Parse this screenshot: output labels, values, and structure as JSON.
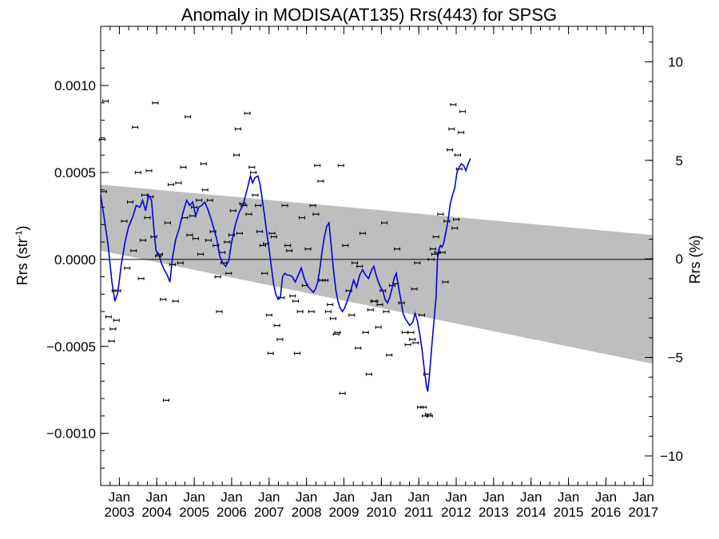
{
  "chart_data": {
    "type": "scatter",
    "title": "Anomaly in MODISA(AT135) Rrs(443) for SPSG",
    "ylabel": "Rrs (str",
    "ylabel_sup": "-1",
    "ylabel_close": ")",
    "y2label": "Rrs (%)",
    "xlim": [
      2002.5,
      2017.25
    ],
    "ylim": [
      -0.0013,
      0.00134
    ],
    "y2lim": [
      -11.5,
      11.8
    ],
    "y_ticks": [
      {
        "value": 0.001,
        "label": "0.0010"
      },
      {
        "value": 0.0005,
        "label": "0.0005"
      },
      {
        "value": 0.0,
        "label": "0.0000"
      },
      {
        "value": -0.0005,
        "label": "−0.0005"
      },
      {
        "value": -0.001,
        "label": "−0.0010"
      }
    ],
    "y2_ticks": [
      {
        "value": 10,
        "label": "10"
      },
      {
        "value": 5,
        "label": "5"
      },
      {
        "value": 0,
        "label": "0"
      },
      {
        "value": -5,
        "label": "−5"
      },
      {
        "value": -10,
        "label": "−10"
      }
    ],
    "x_ticks": [
      {
        "value": 2003.0,
        "month": "Jan",
        "year": "2003"
      },
      {
        "value": 2004.0,
        "month": "Jan",
        "year": "2004"
      },
      {
        "value": 2005.0,
        "month": "Jan",
        "year": "2005"
      },
      {
        "value": 2006.0,
        "month": "Jan",
        "year": "2006"
      },
      {
        "value": 2007.0,
        "month": "Jan",
        "year": "2007"
      },
      {
        "value": 2008.0,
        "month": "Jan",
        "year": "2008"
      },
      {
        "value": 2009.0,
        "month": "Jan",
        "year": "2009"
      },
      {
        "value": 2010.0,
        "month": "Jan",
        "year": "2010"
      },
      {
        "value": 2011.0,
        "month": "Jan",
        "year": "2011"
      },
      {
        "value": 2012.0,
        "month": "Jan",
        "year": "2012"
      },
      {
        "value": 2013.0,
        "month": "Jan",
        "year": "2013"
      },
      {
        "value": 2014.0,
        "month": "Jan",
        "year": "2014"
      },
      {
        "value": 2015.0,
        "month": "Jan",
        "year": "2015"
      },
      {
        "value": 2016.0,
        "month": "Jan",
        "year": "2016"
      },
      {
        "value": 2017.0,
        "month": "Jan",
        "year": "2017"
      }
    ],
    "uncertainty_band": {
      "upper": [
        [
          2002.5,
          0.00043
        ],
        [
          2017.25,
          0.00014
        ]
      ],
      "lower": [
        [
          2002.5,
          5e-05
        ],
        [
          2017.25,
          -0.0006
        ]
      ],
      "color": "#bebebe"
    },
    "zero_line": 0.0,
    "colors": {
      "points": "#000000",
      "line": "#0000dd",
      "band": "#bebebe"
    },
    "points": [
      [
        2002.54,
        0.00069
      ],
      [
        2002.58,
        0.00039
      ],
      [
        2002.63,
        0.00091
      ],
      [
        2002.71,
        -0.00033
      ],
      [
        2002.79,
        -0.00047
      ],
      [
        2002.83,
        -0.0004
      ],
      [
        2002.88,
        -0.00018
      ],
      [
        2002.92,
        -0.00035
      ],
      [
        2002.96,
        -0.00018
      ],
      [
        2003.13,
        0.00022
      ],
      [
        2003.21,
        -5e-05
      ],
      [
        2003.29,
        0.00033
      ],
      [
        2003.38,
        5e-05
      ],
      [
        2003.42,
        0.00076
      ],
      [
        2003.5,
        0.0005
      ],
      [
        2003.58,
        -0.00011
      ],
      [
        2003.63,
        0.00011
      ],
      [
        2003.67,
        0.00037
      ],
      [
        2003.75,
        0.00024
      ],
      [
        2003.79,
        0.00051
      ],
      [
        2003.83,
        0.00036
      ],
      [
        2003.92,
        0.00013
      ],
      [
        2003.96,
        0.0009
      ],
      [
        2004.04,
        2e-05
      ],
      [
        2004.08,
        3e-05
      ],
      [
        2004.17,
        -0.00023
      ],
      [
        2004.25,
        -0.00081
      ],
      [
        2004.29,
        0.00021
      ],
      [
        2004.38,
        0.00043
      ],
      [
        2004.42,
        -3e-05
      ],
      [
        2004.5,
        -0.00024
      ],
      [
        2004.58,
        0.00044
      ],
      [
        2004.63,
        -2e-05
      ],
      [
        2004.71,
        0.00053
      ],
      [
        2004.75,
        0.00024
      ],
      [
        2004.83,
        0.00082
      ],
      [
        2004.88,
        0.00014
      ],
      [
        2004.96,
        0.00025
      ],
      [
        2005.0,
        0.0003
      ],
      [
        2005.04,
        0.00012
      ],
      [
        2005.13,
        0.00034
      ],
      [
        2005.17,
        3e-05
      ],
      [
        2005.25,
        0.00055
      ],
      [
        2005.29,
        0.0004
      ],
      [
        2005.38,
        0.00011
      ],
      [
        2005.42,
        0.00034
      ],
      [
        2005.5,
        0.00016
      ],
      [
        2005.58,
        8e-05
      ],
      [
        2005.63,
        -0.0001
      ],
      [
        2005.67,
        -0.0003
      ],
      [
        2005.75,
        4e-05
      ],
      [
        2005.79,
        -2e-05
      ],
      [
        2005.88,
        0.0001
      ],
      [
        2005.92,
        -8e-05
      ],
      [
        2006.0,
        0.00014
      ],
      [
        2006.04,
        0.00028
      ],
      [
        2006.13,
        0.0006
      ],
      [
        2006.17,
        0.00075
      ],
      [
        2006.21,
        0.00015
      ],
      [
        2006.29,
        0.00032
      ],
      [
        2006.33,
        0.00031
      ],
      [
        2006.42,
        0.00084
      ],
      [
        2006.46,
        0.00026
      ],
      [
        2006.54,
        0.00053
      ],
      [
        2006.58,
        0.0005
      ],
      [
        2006.63,
        0.00037
      ],
      [
        2006.71,
        0.00031
      ],
      [
        2006.75,
        0.00016
      ],
      [
        2006.83,
        8e-05
      ],
      [
        2006.88,
        -8e-05
      ],
      [
        2006.92,
        9e-05
      ],
      [
        2007.0,
        -0.00032
      ],
      [
        2007.04,
        -0.00054
      ],
      [
        2007.08,
        0.00015
      ],
      [
        2007.13,
        0.00013
      ],
      [
        2007.21,
        -0.00038
      ],
      [
        2007.29,
        -0.00046
      ],
      [
        2007.33,
        -0.00022
      ],
      [
        2007.42,
        0.00031
      ],
      [
        2007.5,
        8e-05
      ],
      [
        2007.54,
        5e-05
      ],
      [
        2007.63,
        -0.00021
      ],
      [
        2007.71,
        -0.00024
      ],
      [
        2007.75,
        -0.00054
      ],
      [
        2007.83,
        -0.0003
      ],
      [
        2007.88,
        0.00024
      ],
      [
        2007.96,
        -0.00015
      ],
      [
        2008.04,
        6e-05
      ],
      [
        2008.13,
        -0.0003
      ],
      [
        2008.17,
        0.00031
      ],
      [
        2008.25,
        0.00026
      ],
      [
        2008.29,
        0.00054
      ],
      [
        2008.38,
        0.00045
      ],
      [
        2008.42,
        -0.00012
      ],
      [
        2008.5,
        -0.00012
      ],
      [
        2008.58,
        -0.0003
      ],
      [
        2008.63,
        -0.00026
      ],
      [
        2008.71,
        -0.00034
      ],
      [
        2008.79,
        -0.00043
      ],
      [
        2008.83,
        -0.00042
      ],
      [
        2008.92,
        0.00054
      ],
      [
        2008.96,
        -0.00077
      ],
      [
        2009.04,
        8e-05
      ],
      [
        2009.13,
        -0.00018
      ],
      [
        2009.21,
        -0.00032
      ],
      [
        2009.29,
        -2e-05
      ],
      [
        2009.38,
        -0.00051
      ],
      [
        2009.42,
        -4e-05
      ],
      [
        2009.5,
        0.00015
      ],
      [
        2009.58,
        -0.00042
      ],
      [
        2009.67,
        -0.00066
      ],
      [
        2009.71,
        -0.00029
      ],
      [
        2009.79,
        -0.00024
      ],
      [
        2009.83,
        -0.00024
      ],
      [
        2009.92,
        -0.00039
      ],
      [
        2009.96,
        -0.00026
      ],
      [
        2010.04,
        -0.00018
      ],
      [
        2010.08,
        0.00021
      ],
      [
        2010.13,
        -0.0003
      ],
      [
        2010.21,
        -0.00055
      ],
      [
        2010.29,
        -0.00015
      ],
      [
        2010.38,
        -0.00014
      ],
      [
        2010.42,
        6e-05
      ],
      [
        2010.54,
        -0.00025
      ],
      [
        2010.63,
        -0.00042
      ],
      [
        2010.71,
        -0.00049
      ],
      [
        2010.79,
        -0.00042
      ],
      [
        2010.83,
        -0.00046
      ],
      [
        2010.88,
        -0.00017
      ],
      [
        2010.92,
        -0.00048
      ],
      [
        2010.96,
        -2e-05
      ],
      [
        2011.04,
        -0.00085
      ],
      [
        2011.08,
        -0.00032
      ],
      [
        2011.13,
        -0.00085
      ],
      [
        2011.17,
        -0.0009
      ],
      [
        2011.21,
        -0.00066
      ],
      [
        2011.25,
        -0.00089
      ],
      [
        2011.29,
        -0.0009
      ],
      [
        2011.33,
        0.0
      ],
      [
        2011.38,
        6e-05
      ],
      [
        2011.42,
        3e-05
      ],
      [
        2011.46,
        0.00013
      ],
      [
        2011.5,
        4e-05
      ],
      [
        2011.58,
        0.00026
      ],
      [
        2011.63,
        4e-05
      ],
      [
        2011.71,
        -0.00013
      ],
      [
        2011.75,
        0.00022
      ],
      [
        2011.83,
        0.00063
      ],
      [
        2011.88,
        0.00075
      ],
      [
        2011.92,
        0.00089
      ],
      [
        2011.96,
        0.00018
      ],
      [
        2012.0,
        0.00023
      ],
      [
        2012.04,
        0.0006
      ],
      [
        2012.08,
        0.00052
      ],
      [
        2012.13,
        0.00073
      ],
      [
        2012.17,
        0.00085
      ]
    ],
    "line_points": [
      [
        2002.5,
        0.00037
      ],
      [
        2002.6,
        0.00023
      ],
      [
        2002.7,
        8e-05
      ],
      [
        2002.8,
        -0.00013
      ],
      [
        2002.88,
        -0.00024
      ],
      [
        2002.96,
        -0.00019
      ],
      [
        2003.05,
        -3e-05
      ],
      [
        2003.15,
        0.0001
      ],
      [
        2003.25,
        0.00019
      ],
      [
        2003.35,
        0.00024
      ],
      [
        2003.45,
        0.00031
      ],
      [
        2003.55,
        0.0003
      ],
      [
        2003.62,
        0.00034
      ],
      [
        2003.7,
        0.00028
      ],
      [
        2003.78,
        0.00037
      ],
      [
        2003.86,
        0.00034
      ],
      [
        2003.92,
        0.00018
      ],
      [
        2003.98,
        5e-05
      ],
      [
        2004.05,
        3e-05
      ],
      [
        2004.12,
        -2e-05
      ],
      [
        2004.2,
        -6e-05
      ],
      [
        2004.28,
        -9e-05
      ],
      [
        2004.35,
        -0.00013
      ],
      [
        2004.42,
        1e-05
      ],
      [
        2004.5,
        0.00011
      ],
      [
        2004.6,
        0.00018
      ],
      [
        2004.7,
        0.00027
      ],
      [
        2004.8,
        0.00034
      ],
      [
        2004.88,
        0.00031
      ],
      [
        2004.96,
        0.00033
      ],
      [
        2005.04,
        0.00025
      ],
      [
        2005.12,
        0.0003
      ],
      [
        2005.2,
        0.00031
      ],
      [
        2005.28,
        0.00033
      ],
      [
        2005.36,
        0.00029
      ],
      [
        2005.44,
        0.00024
      ],
      [
        2005.52,
        0.00018
      ],
      [
        2005.6,
        0.00012
      ],
      [
        2005.68,
        2e-05
      ],
      [
        2005.76,
        -2e-05
      ],
      [
        2005.84,
        -4e-05
      ],
      [
        2005.92,
        -1e-05
      ],
      [
        2006.0,
        0.0001
      ],
      [
        2006.1,
        0.0002
      ],
      [
        2006.2,
        0.00027
      ],
      [
        2006.3,
        0.00031
      ],
      [
        2006.4,
        0.00039
      ],
      [
        2006.5,
        0.00048
      ],
      [
        2006.56,
        0.00044
      ],
      [
        2006.62,
        0.00047
      ],
      [
        2006.7,
        0.00048
      ],
      [
        2006.76,
        0.00043
      ],
      [
        2006.82,
        0.00034
      ],
      [
        2006.88,
        0.00025
      ],
      [
        2006.94,
        0.00015
      ],
      [
        2007.0,
        6e-05
      ],
      [
        2007.06,
        -4e-05
      ],
      [
        2007.12,
        -0.00014
      ],
      [
        2007.18,
        -0.0002
      ],
      [
        2007.24,
        -0.00023
      ],
      [
        2007.3,
        -0.00022
      ],
      [
        2007.36,
        -0.0001
      ],
      [
        2007.42,
        -8e-05
      ],
      [
        2007.48,
        -9e-05
      ],
      [
        2007.54,
        -9e-05
      ],
      [
        2007.62,
        -0.0001
      ],
      [
        2007.7,
        -0.00013
      ],
      [
        2007.78,
        -9e-05
      ],
      [
        2007.86,
        -5e-05
      ],
      [
        2007.94,
        -0.00011
      ],
      [
        2008.02,
        -0.00015
      ],
      [
        2008.1,
        -0.00017
      ],
      [
        2008.18,
        -0.00019
      ],
      [
        2008.24,
        -0.00017
      ],
      [
        2008.3,
        -0.00013
      ],
      [
        2008.36,
        -5e-05
      ],
      [
        2008.42,
        5e-05
      ],
      [
        2008.48,
        0.00013
      ],
      [
        2008.54,
        0.00019
      ],
      [
        2008.6,
        0.00021
      ],
      [
        2008.66,
        8e-05
      ],
      [
        2008.72,
        -6e-05
      ],
      [
        2008.78,
        -0.00017
      ],
      [
        2008.84,
        -0.00024
      ],
      [
        2008.9,
        -0.00028
      ],
      [
        2008.96,
        -0.0003
      ],
      [
        2009.02,
        -0.00028
      ],
      [
        2009.1,
        -0.00023
      ],
      [
        2009.18,
        -0.00018
      ],
      [
        2009.26,
        -0.00012
      ],
      [
        2009.34,
        -0.00016
      ],
      [
        2009.42,
        -9e-05
      ],
      [
        2009.5,
        -6e-05
      ],
      [
        2009.58,
        -9e-05
      ],
      [
        2009.66,
        -0.00011
      ],
      [
        2009.74,
        -6e-05
      ],
      [
        2009.8,
        -4e-05
      ],
      [
        2009.86,
        -9e-05
      ],
      [
        2009.92,
        -0.00013
      ],
      [
        2009.98,
        -0.00016
      ],
      [
        2010.04,
        -0.00018
      ],
      [
        2010.1,
        -0.00023
      ],
      [
        2010.16,
        -0.00025
      ],
      [
        2010.22,
        -0.00022
      ],
      [
        2010.28,
        -0.00017
      ],
      [
        2010.34,
        -0.00011
      ],
      [
        2010.4,
        -8e-05
      ],
      [
        2010.46,
        -0.00016
      ],
      [
        2010.52,
        -0.00023
      ],
      [
        2010.58,
        -0.00031
      ],
      [
        2010.64,
        -0.00034
      ],
      [
        2010.7,
        -0.00036
      ],
      [
        2010.76,
        -0.00038
      ],
      [
        2010.84,
        -0.00036
      ],
      [
        2010.9,
        -0.00031
      ],
      [
        2010.96,
        -0.00035
      ],
      [
        2011.02,
        -0.00042
      ],
      [
        2011.08,
        -0.00051
      ],
      [
        2011.14,
        -0.00062
      ],
      [
        2011.2,
        -0.00072
      ],
      [
        2011.24,
        -0.00076
      ],
      [
        2011.28,
        -0.00068
      ],
      [
        2011.34,
        -0.00052
      ],
      [
        2011.4,
        -0.00037
      ],
      [
        2011.46,
        -0.00022
      ],
      [
        2011.5,
        0.0
      ],
      [
        2011.54,
        6e-05
      ],
      [
        2011.58,
        8e-05
      ],
      [
        2011.62,
        7e-05
      ],
      [
        2011.66,
        9e-05
      ],
      [
        2011.72,
        0.00015
      ],
      [
        2011.78,
        0.00022
      ],
      [
        2011.84,
        0.00032
      ],
      [
        2011.9,
        0.00037
      ],
      [
        2011.96,
        0.00041
      ],
      [
        2012.02,
        0.0005
      ],
      [
        2012.08,
        0.00053
      ],
      [
        2012.14,
        0.00055
      ],
      [
        2012.2,
        0.00054
      ],
      [
        2012.26,
        0.00051
      ],
      [
        2012.32,
        0.00055
      ],
      [
        2012.38,
        0.00058
      ]
    ]
  }
}
